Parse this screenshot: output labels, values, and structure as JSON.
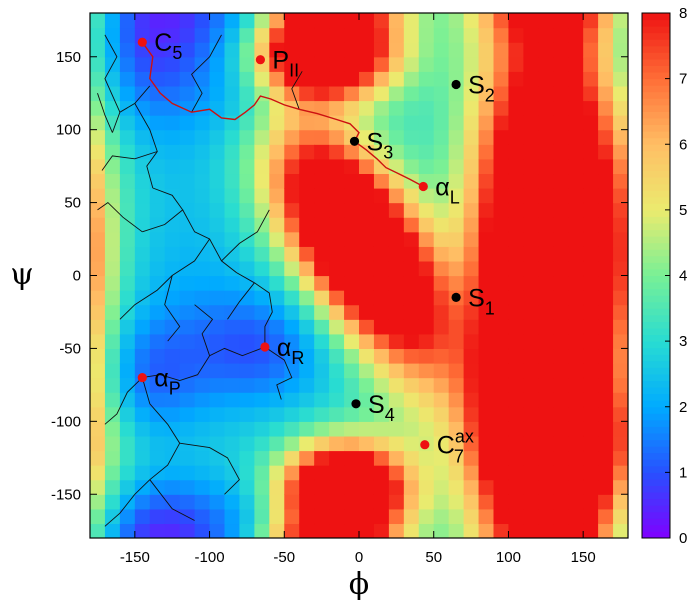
{
  "chart_data": {
    "type": "heatmap",
    "title": "",
    "xlabel": "ϕ",
    "ylabel": "ψ",
    "xlim": [
      -180,
      180
    ],
    "ylim": [
      -180,
      180
    ],
    "xticks": [
      -150,
      -100,
      -50,
      0,
      50,
      100,
      150
    ],
    "yticks": [
      -150,
      -100,
      -50,
      0,
      50,
      100,
      150
    ],
    "colorbar": {
      "min": 0,
      "max": 8,
      "ticks": [
        0,
        1,
        2,
        3,
        4,
        5,
        6,
        7,
        8
      ],
      "colormap": "rainbow (purple to red)"
    },
    "grid": false,
    "points": [
      {
        "name": "C",
        "sub": "5",
        "sup": "",
        "x": -145,
        "y": 160,
        "color": "#ee1111",
        "label_dx": 12,
        "label_dy": 4
      },
      {
        "name": "P",
        "sub": "II",
        "sup": "",
        "x": -66,
        "y": 148,
        "color": "#ee1111",
        "label_dx": 12,
        "label_dy": 4
      },
      {
        "name": "S",
        "sub": "2",
        "sup": "",
        "x": 65,
        "y": 131,
        "color": "#000000",
        "label_dx": 12,
        "label_dy": 4
      },
      {
        "name": "S",
        "sub": "3",
        "sup": "",
        "x": -3,
        "y": 92,
        "color": "#000000",
        "label_dx": 12,
        "label_dy": 4
      },
      {
        "name": "α",
        "sub": "L",
        "sup": "",
        "x": 43,
        "y": 61,
        "color": "#ee1111",
        "label_dx": 12,
        "label_dy": 4
      },
      {
        "name": "S",
        "sub": "1",
        "sup": "",
        "x": 65,
        "y": -15,
        "color": "#000000",
        "label_dx": 12,
        "label_dy": 4
      },
      {
        "name": "α",
        "sub": "R",
        "sup": "",
        "x": -63,
        "y": -49,
        "color": "#ee1111",
        "label_dx": 12,
        "label_dy": 4
      },
      {
        "name": "α",
        "sub": "P",
        "sup": "",
        "x": -145,
        "y": -70,
        "color": "#ee1111",
        "label_dx": 12,
        "label_dy": 4
      },
      {
        "name": "S",
        "sub": "4",
        "sup": "",
        "x": -2,
        "y": -88,
        "color": "#000000",
        "label_dx": 12,
        "label_dy": 4
      },
      {
        "name": "C",
        "sub": "7",
        "sup": "ax",
        "x": 44,
        "y": -116,
        "color": "#ee1111",
        "label_dx": 12,
        "label_dy": 4
      }
    ],
    "red_path": [
      [
        -145,
        160
      ],
      [
        -138,
        150
      ],
      [
        -140,
        135
      ],
      [
        -133,
        125
      ],
      [
        -125,
        118
      ],
      [
        -112,
        112
      ],
      [
        -100,
        114
      ],
      [
        -92,
        108
      ],
      [
        -83,
        107
      ],
      [
        -76,
        112
      ],
      [
        -70,
        117
      ],
      [
        -66,
        123
      ],
      [
        -59,
        121
      ],
      [
        -50,
        117
      ],
      [
        -40,
        114
      ],
      [
        -28,
        111
      ],
      [
        -15,
        107
      ],
      [
        -6,
        104
      ],
      [
        0,
        98
      ],
      [
        -3,
        92
      ],
      [
        5,
        86
      ],
      [
        12,
        80
      ],
      [
        18,
        74
      ],
      [
        26,
        70
      ],
      [
        34,
        66
      ],
      [
        43,
        61
      ]
    ],
    "black_tree": [
      [
        [
          -140,
          130
        ],
        [
          -150,
          118
        ],
        [
          -160,
          112
        ],
        [
          -165,
          98
        ]
      ],
      [
        [
          -150,
          118
        ],
        [
          -140,
          100
        ],
        [
          -135,
          85
        ],
        [
          -142,
          75
        ],
        [
          -138,
          60
        ]
      ],
      [
        [
          -135,
          85
        ],
        [
          -150,
          80
        ],
        [
          -165,
          82
        ],
        [
          -172,
          72
        ]
      ],
      [
        [
          -138,
          60
        ],
        [
          -125,
          55
        ],
        [
          -118,
          45
        ],
        [
          -130,
          35
        ],
        [
          -145,
          30
        ]
      ],
      [
        [
          -118,
          45
        ],
        [
          -110,
          30
        ],
        [
          -100,
          25
        ],
        [
          -92,
          10
        ],
        [
          -82,
          2
        ]
      ],
      [
        [
          -82,
          2
        ],
        [
          -70,
          -5
        ],
        [
          -60,
          -12
        ],
        [
          -58,
          -25
        ],
        [
          -63,
          -35
        ],
        [
          -63,
          -49
        ]
      ],
      [
        [
          -63,
          -49
        ],
        [
          -50,
          -58
        ],
        [
          -45,
          -70
        ],
        [
          -55,
          -75
        ],
        [
          -52,
          -85
        ]
      ],
      [
        [
          -63,
          -49
        ],
        [
          -78,
          -55
        ],
        [
          -90,
          -50
        ],
        [
          -100,
          -55
        ],
        [
          -108,
          -68
        ],
        [
          -120,
          -72
        ],
        [
          -133,
          -68
        ],
        [
          -145,
          -70
        ]
      ],
      [
        [
          -145,
          -70
        ],
        [
          -155,
          -80
        ],
        [
          -162,
          -95
        ],
        [
          -170,
          -102
        ]
      ],
      [
        [
          -145,
          -70
        ],
        [
          -140,
          -88
        ],
        [
          -128,
          -102
        ],
        [
          -120,
          -115
        ],
        [
          -128,
          -130
        ],
        [
          -140,
          -140
        ],
        [
          -150,
          -150
        ]
      ],
      [
        [
          -120,
          -115
        ],
        [
          -100,
          -118
        ],
        [
          -88,
          -125
        ],
        [
          -80,
          -140
        ],
        [
          -90,
          -150
        ]
      ],
      [
        [
          -100,
          25
        ],
        [
          -110,
          10
        ],
        [
          -125,
          0
        ],
        [
          -135,
          -10
        ],
        [
          -150,
          -20
        ],
        [
          -160,
          -30
        ]
      ],
      [
        [
          -125,
          0
        ],
        [
          -130,
          -20
        ],
        [
          -120,
          -35
        ],
        [
          -128,
          -45
        ]
      ],
      [
        [
          -165,
          98
        ],
        [
          -170,
          110
        ],
        [
          -175,
          125
        ]
      ],
      [
        [
          -112,
          112
        ],
        [
          -105,
          125
        ],
        [
          -112,
          138
        ],
        [
          -100,
          150
        ],
        [
          -92,
          165
        ]
      ],
      [
        [
          -160,
          112
        ],
        [
          -170,
          135
        ],
        [
          -162,
          150
        ],
        [
          -170,
          165
        ]
      ],
      [
        [
          -92,
          10
        ],
        [
          -80,
          22
        ],
        [
          -68,
          30
        ],
        [
          -60,
          45
        ]
      ],
      [
        [
          -100,
          -55
        ],
        [
          -105,
          -40
        ],
        [
          -98,
          -30
        ],
        [
          -110,
          -20
        ]
      ],
      [
        [
          -150,
          -150
        ],
        [
          -160,
          -163
        ],
        [
          -170,
          -172
        ]
      ],
      [
        [
          -140,
          -140
        ],
        [
          -125,
          -160
        ],
        [
          -110,
          -168
        ]
      ],
      [
        [
          -145,
          30
        ],
        [
          -158,
          40
        ],
        [
          -168,
          50
        ],
        [
          -175,
          45
        ]
      ],
      [
        [
          -40,
          114
        ],
        [
          -45,
          128
        ],
        [
          -38,
          140
        ]
      ],
      [
        [
          -70,
          -5
        ],
        [
          -80,
          -18
        ],
        [
          -88,
          -30
        ]
      ]
    ]
  }
}
